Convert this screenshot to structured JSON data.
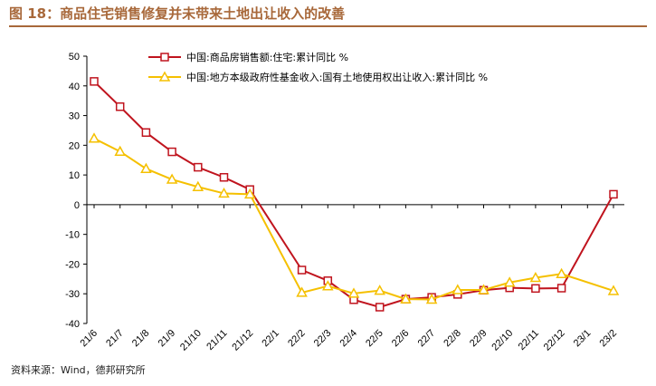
{
  "title": "图 18：商品住宅销售修复并未带来土地出让收入的改善",
  "source": "资料来源：Wind，德邦研究所",
  "colors": {
    "title": "#a8683a",
    "series1": "#c0141e",
    "series2": "#f5c000",
    "axis": "#000000"
  },
  "chart_data": {
    "type": "line",
    "categories": [
      "21/6",
      "21/7",
      "21/8",
      "21/9",
      "21/10",
      "21/11",
      "21/12",
      "22/1",
      "22/2",
      "22/3",
      "22/4",
      "22/5",
      "22/6",
      "22/7",
      "22/8",
      "22/9",
      "22/10",
      "22/11",
      "22/12",
      "23/1",
      "23/2"
    ],
    "series": [
      {
        "name": "中国:商品房销售额:住宅:累计同比 %",
        "marker": "square",
        "color": "#c0141e",
        "values": [
          41.5,
          33,
          24.3,
          17.8,
          12.6,
          9.2,
          5.1,
          null,
          -22,
          -25.6,
          -32,
          -34.5,
          -31.8,
          -31.2,
          -30.2,
          -28.8,
          -28,
          -28.2,
          -28.1,
          null,
          3.5
        ]
      },
      {
        "name": "中国:地方本级政府性基金收入:国有土地使用权出让收入:累计同比 %",
        "marker": "triangle",
        "color": "#f5c000",
        "values": [
          22.3,
          17.9,
          12.1,
          8.5,
          6,
          3.8,
          3.5,
          null,
          -29.6,
          -27.4,
          -29.9,
          -28.9,
          -31.8,
          -31.9,
          -28.7,
          -28.7,
          -26.2,
          -24.6,
          -23.3,
          null,
          -29
        ]
      }
    ],
    "ylim": [
      -40,
      50
    ],
    "yticks": [
      -40,
      -30,
      -20,
      -10,
      0,
      10,
      20,
      30,
      40,
      50
    ],
    "legend_position": "top"
  }
}
